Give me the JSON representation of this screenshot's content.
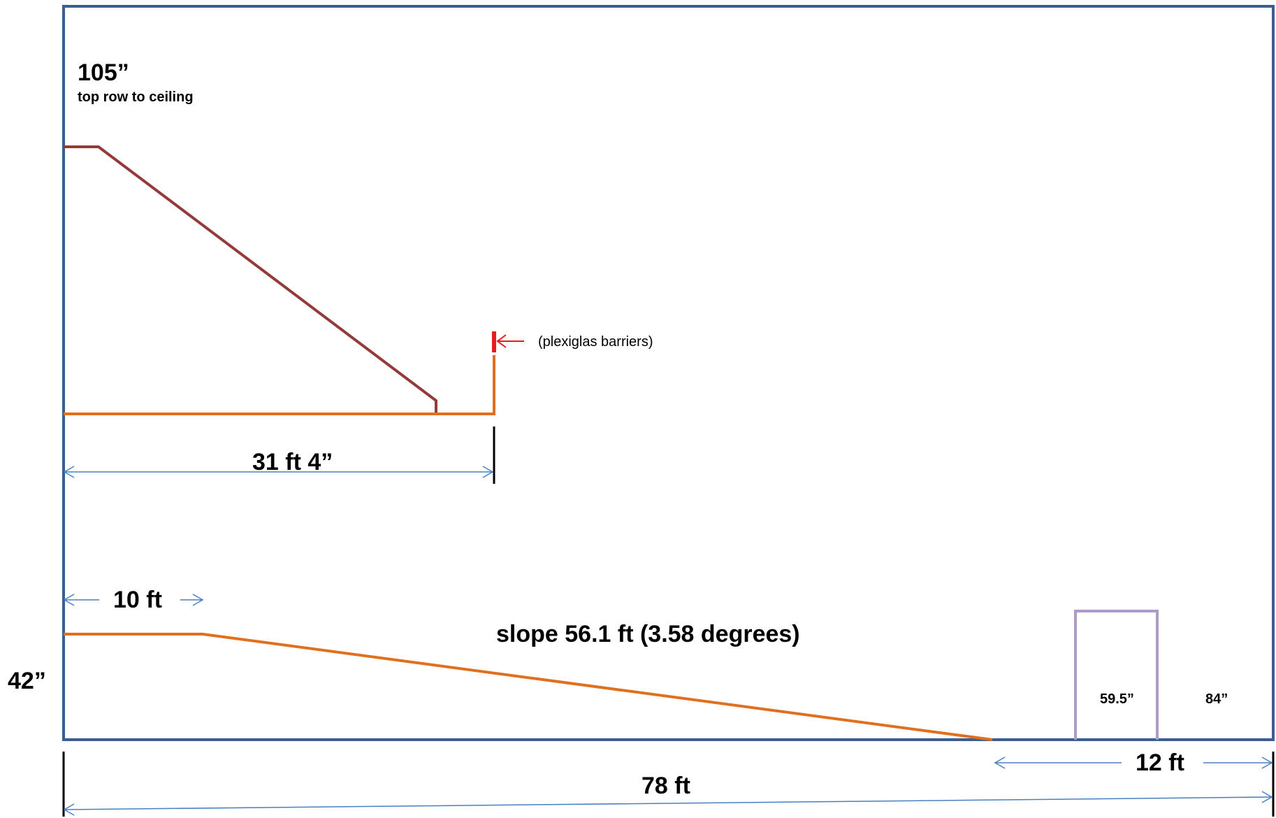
{
  "labels": {
    "ceiling_height": "105”",
    "ceiling_note": "top row to ceiling",
    "barrier_note": "(plexiglas barriers)",
    "seating_depth": "31 ft 4”",
    "flat_section": "10 ft",
    "slope": "slope 56.1 ft (3.58 degrees)",
    "floor_height": "42”",
    "door_width": "59.5”",
    "door_height": "84”",
    "stage_depth": "12 ft",
    "total_length": "78 ft"
  },
  "colors": {
    "frame": "#3a5f8f",
    "seating_slope": "#943a3a",
    "floor": "#e07020",
    "barrier": "#e81c1c",
    "dimension_arrow": "#4a80c0",
    "door": "#b09ac8",
    "tick": "#000000"
  }
}
